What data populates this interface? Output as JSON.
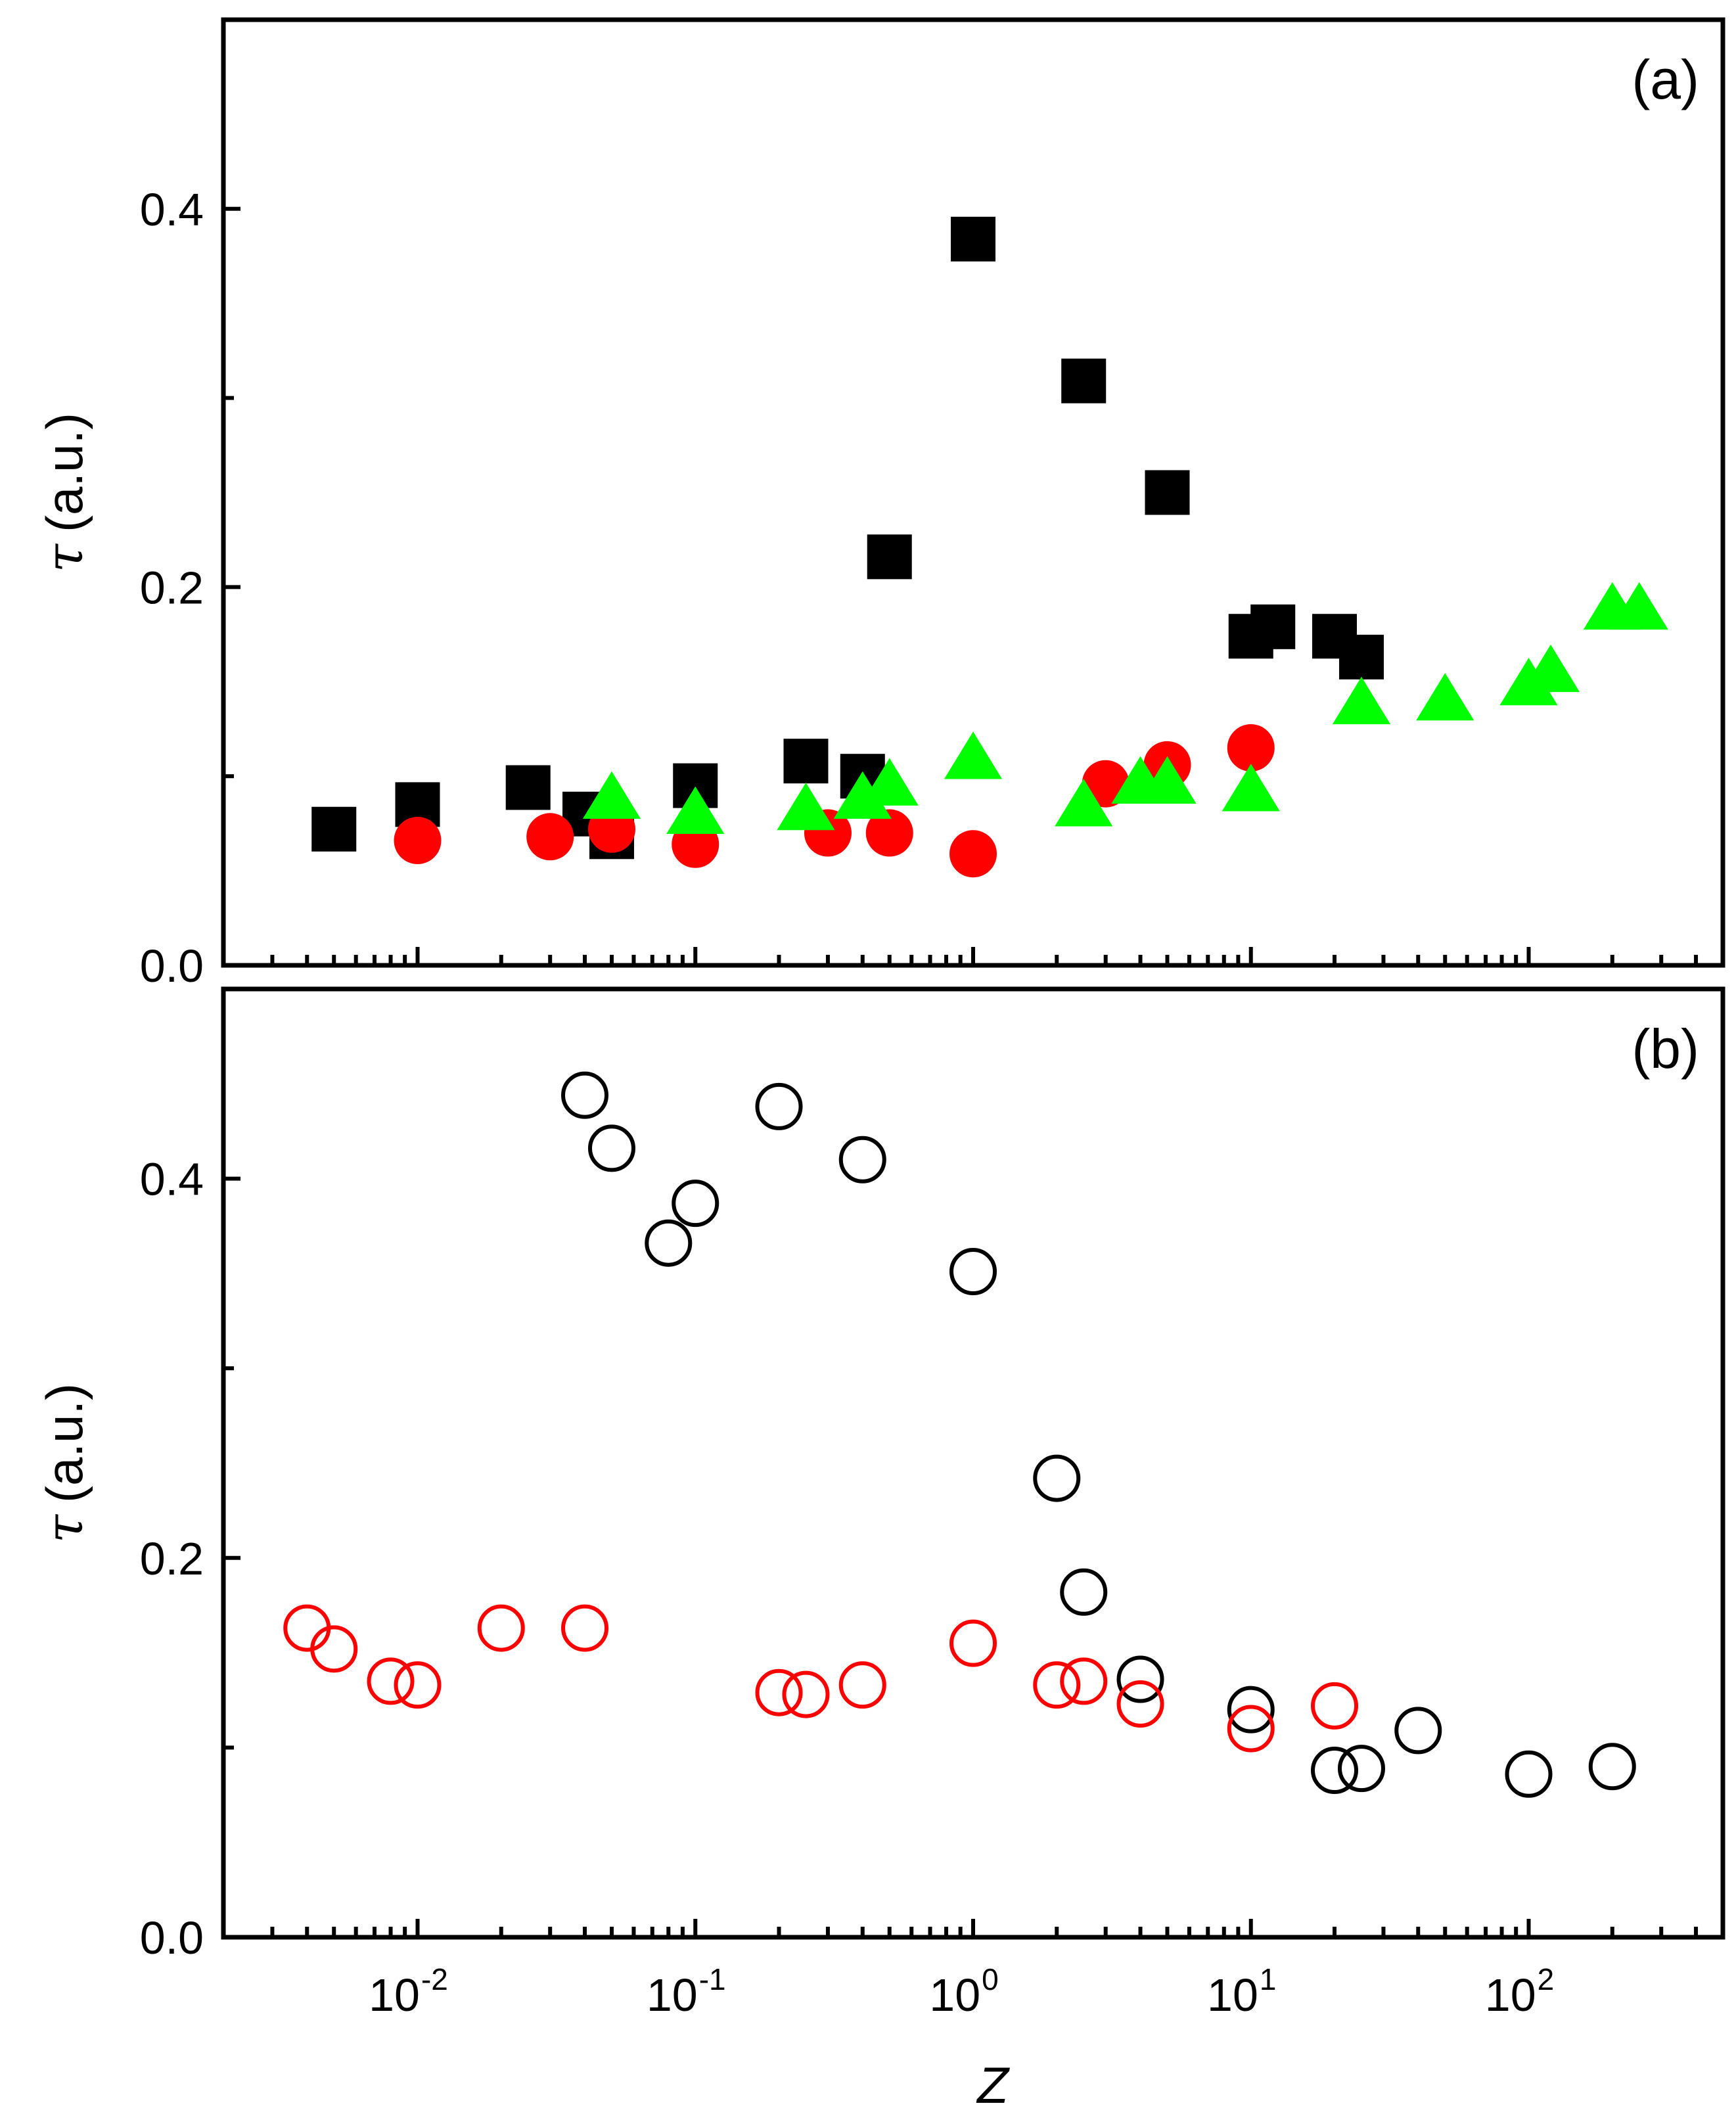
{
  "chart_data": [
    {
      "type": "scatter",
      "panel_label": "(a)",
      "xscale": "log",
      "xlim": [
        0.002,
        500
      ],
      "ylim": [
        0.0,
        0.5
      ],
      "xlabel": "Z",
      "ylabel": "τ (a.u.)",
      "ylabel_symbol": "τ",
      "ylabel_unit": "(a.u.)",
      "yticks": [
        0.0,
        0.2,
        0.4
      ],
      "ytick_labels": [
        "0.0",
        "0.2",
        "0.4"
      ],
      "series": [
        {
          "name": "filled squares",
          "marker": "square",
          "filled": true,
          "color": "#000000",
          "x": [
            0.005,
            0.01,
            0.025,
            0.04,
            0.05,
            0.1,
            0.25,
            0.4,
            0.5,
            1.0,
            2.5,
            5.0,
            10,
            12,
            20,
            25
          ],
          "y": [
            0.072,
            0.085,
            0.094,
            0.08,
            0.068,
            0.095,
            0.108,
            0.1,
            0.216,
            0.384,
            0.309,
            0.25,
            0.174,
            0.179,
            0.174,
            0.163
          ]
        },
        {
          "name": "filled circles",
          "marker": "circle",
          "filled": true,
          "color": "#ff0000",
          "x": [
            0.01,
            0.03,
            0.05,
            0.1,
            0.3,
            0.5,
            1.0,
            3.0,
            5.0,
            10
          ],
          "y": [
            0.066,
            0.068,
            0.072,
            0.064,
            0.07,
            0.07,
            0.059,
            0.096,
            0.106,
            0.115
          ]
        },
        {
          "name": "filled triangles",
          "marker": "triangle",
          "filled": true,
          "color": "#00ff00",
          "x": [
            0.05,
            0.1,
            0.25,
            0.4,
            0.5,
            1.0,
            2.5,
            4.0,
            5.0,
            10,
            25,
            50,
            100,
            120,
            200,
            250
          ],
          "y": [
            0.088,
            0.08,
            0.082,
            0.088,
            0.095,
            0.109,
            0.084,
            0.096,
            0.096,
            0.092,
            0.138,
            0.14,
            0.148,
            0.155,
            0.188,
            0.188
          ]
        }
      ]
    },
    {
      "type": "scatter",
      "panel_label": "(b)",
      "xscale": "log",
      "xlim": [
        0.002,
        500
      ],
      "ylim": [
        0.0,
        0.5
      ],
      "xlabel": "Z",
      "ylabel": "τ (a.u.)",
      "ylabel_symbol": "τ",
      "ylabel_unit": "(a.u.)",
      "yticks": [
        0.0,
        0.2,
        0.4
      ],
      "ytick_labels": [
        "0.0",
        "0.2",
        "0.4"
      ],
      "xtick_labels": [
        {
          "base": "10",
          "exp": "-2",
          "value": 0.01
        },
        {
          "base": "10",
          "exp": "-1",
          "value": 0.1
        },
        {
          "base": "10",
          "exp": "0",
          "value": 1
        },
        {
          "base": "10",
          "exp": "1",
          "value": 10
        },
        {
          "base": "10",
          "exp": "2",
          "value": 100
        }
      ],
      "series": [
        {
          "name": "open black circles",
          "marker": "circle",
          "filled": false,
          "color": "#000000",
          "x": [
            0.04,
            0.05,
            0.08,
            0.1,
            0.2,
            0.4,
            1.0,
            2.0,
            2.5,
            4.0,
            10,
            20,
            25,
            40,
            100,
            200
          ],
          "y": [
            0.444,
            0.416,
            0.366,
            0.387,
            0.438,
            0.41,
            0.351,
            0.242,
            0.182,
            0.136,
            0.12,
            0.088,
            0.089,
            0.109,
            0.086,
            0.09
          ]
        },
        {
          "name": "open red circles",
          "marker": "circle",
          "filled": false,
          "color": "#ff0000",
          "x": [
            0.004,
            0.005,
            0.008,
            0.01,
            0.02,
            0.04,
            0.2,
            0.25,
            0.4,
            1.0,
            2.0,
            2.5,
            4.0,
            10,
            20
          ],
          "y": [
            0.163,
            0.152,
            0.135,
            0.133,
            0.163,
            0.163,
            0.129,
            0.128,
            0.133,
            0.155,
            0.133,
            0.135,
            0.123,
            0.11,
            0.122
          ]
        }
      ]
    }
  ]
}
